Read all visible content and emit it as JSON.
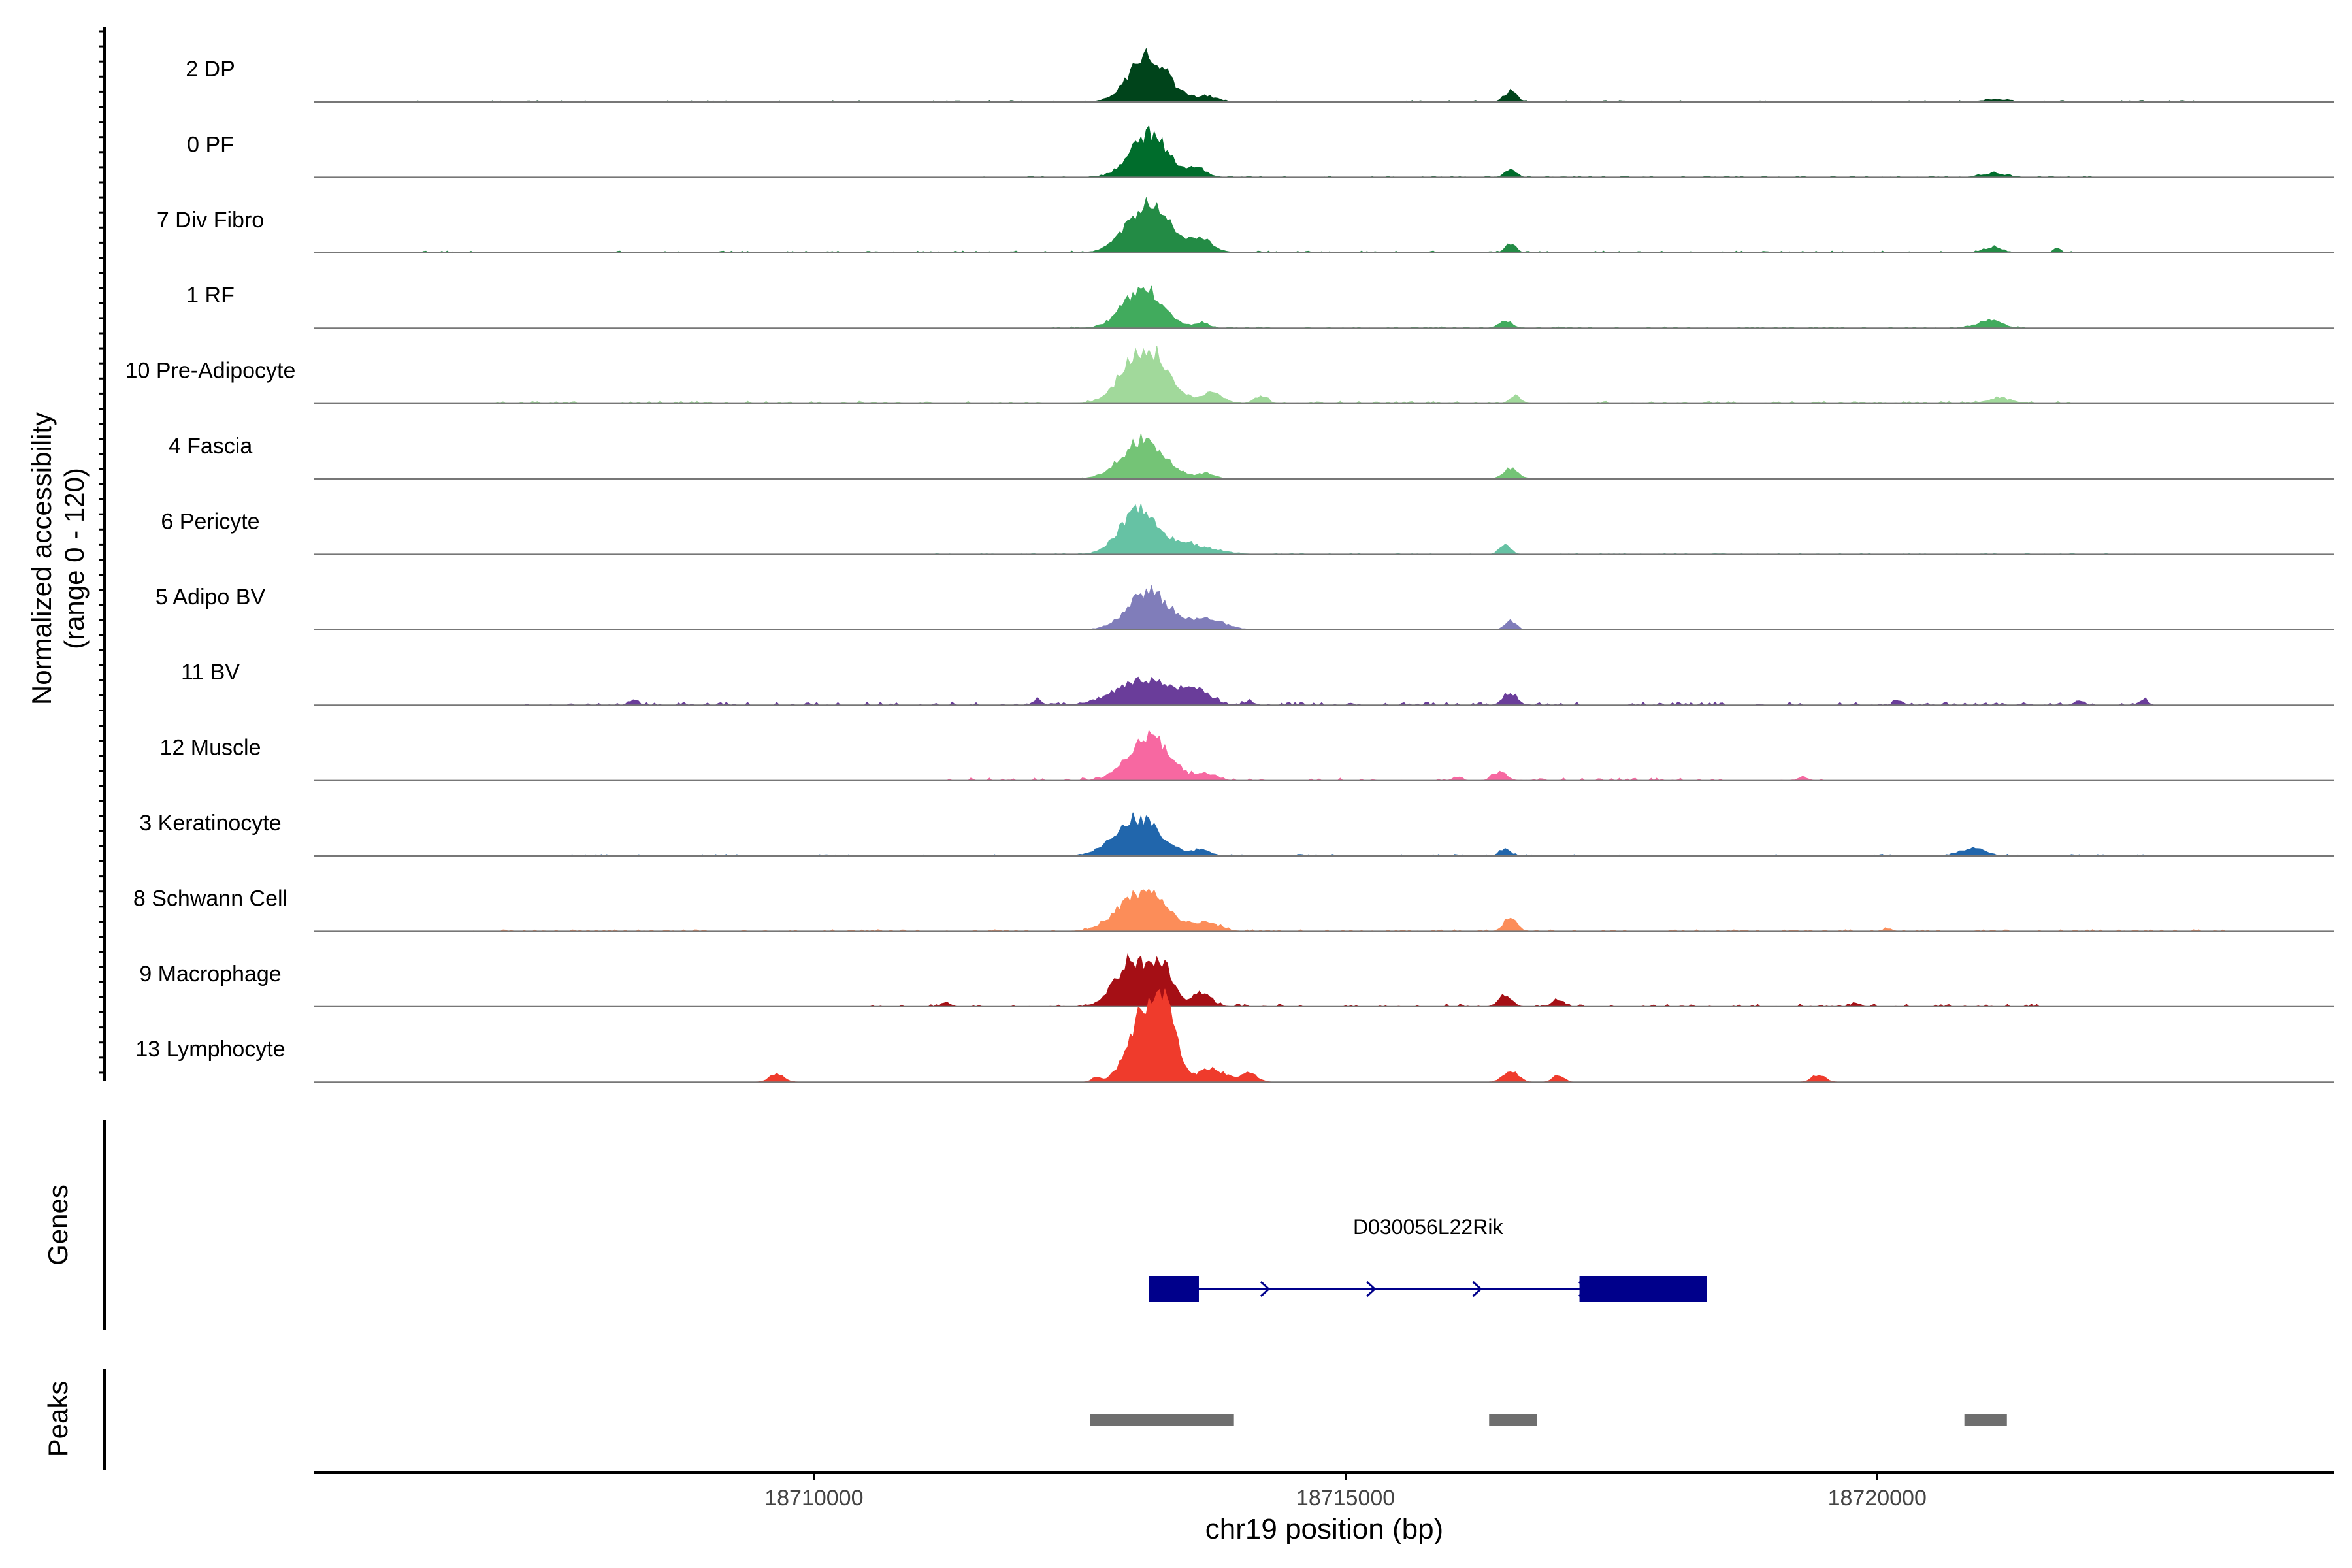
{
  "chart_data": {
    "type": "area",
    "xlabel": "chr19 position (bp)",
    "ylabel_line1": "Normalized accessibility",
    "ylabel_line2": "(range 0 - 120)",
    "xlim": [
      18705300,
      18724300
    ],
    "ylim": [
      0,
      120
    ],
    "xticks": [
      18710000,
      18715000,
      18720000
    ],
    "xtick_labels": [
      "18710000",
      "18715000",
      "18720000"
    ],
    "genes_label": "Genes",
    "peaks_label": "Peaks",
    "gene": {
      "name": "D030056L22Rik",
      "strand": "+",
      "start": 18713150,
      "end": 18718400,
      "exons": [
        [
          18713150,
          18713620
        ],
        [
          18717200,
          18718400
        ]
      ],
      "color": "#00008B"
    },
    "peaks": [
      [
        18712600,
        18713950
      ],
      [
        18716350,
        18716800
      ],
      [
        18720820,
        18721220
      ]
    ],
    "peak_color": "#6e6e6e",
    "series": [
      {
        "name": "2 DP",
        "color": "#00441B",
        "bumps": [
          [
            18713150,
            180,
            36
          ],
          [
            18713700,
            100,
            4
          ],
          [
            18716550,
            60,
            8
          ],
          [
            18721100,
            110,
            2
          ]
        ],
        "noise": [
          [
            18706200,
            18723400,
            1.2
          ]
        ]
      },
      {
        "name": "0 PF",
        "color": "#006D2C",
        "bumps": [
          [
            18713150,
            170,
            34
          ],
          [
            18713600,
            90,
            7
          ],
          [
            18716550,
            50,
            7
          ],
          [
            18721100,
            110,
            3
          ]
        ],
        "noise": [
          [
            18711600,
            18722000,
            1.0
          ]
        ]
      },
      {
        "name": "7 Div Fibro",
        "color": "#238B45",
        "bumps": [
          [
            18713150,
            200,
            37
          ],
          [
            18713650,
            110,
            10
          ],
          [
            18716550,
            50,
            6
          ],
          [
            18721100,
            80,
            4
          ],
          [
            18721700,
            30,
            3
          ]
        ],
        "noise": [
          [
            18706300,
            18722000,
            1.4
          ]
        ]
      },
      {
        "name": "1 RF",
        "color": "#41AB5D",
        "bumps": [
          [
            18713100,
            180,
            32
          ],
          [
            18713650,
            60,
            4
          ],
          [
            18716500,
            60,
            6
          ],
          [
            18721050,
            110,
            6
          ]
        ],
        "noise": [
          [
            18712200,
            18721500,
            1.0
          ]
        ]
      },
      {
        "name": "10 Pre-Adipocyte",
        "color": "#A1D99B",
        "bumps": [
          [
            18713120,
            200,
            44
          ],
          [
            18713750,
            100,
            8
          ],
          [
            18714200,
            60,
            6
          ],
          [
            18716600,
            50,
            6
          ],
          [
            18721150,
            120,
            4
          ]
        ],
        "noise": [
          [
            18707000,
            18721800,
            1.8
          ]
        ]
      },
      {
        "name": "4 Fascia",
        "color": "#74C476",
        "bumps": [
          [
            18713100,
            200,
            30
          ],
          [
            18713700,
            80,
            4
          ],
          [
            18716550,
            70,
            8
          ]
        ],
        "noise": [
          [
            18712500,
            18722000,
            0.6
          ]
        ]
      },
      {
        "name": "6 Pericyte",
        "color": "#66C2A4",
        "bumps": [
          [
            18713050,
            170,
            34
          ],
          [
            18713500,
            230,
            8
          ],
          [
            18716500,
            50,
            8
          ]
        ],
        "noise": [
          [
            18711000,
            18722500,
            0.6
          ]
        ]
      },
      {
        "name": "5 Adipo BV",
        "color": "#807DBA",
        "bumps": [
          [
            18713150,
            190,
            30
          ],
          [
            18713700,
            160,
            8
          ],
          [
            18716550,
            50,
            7
          ]
        ],
        "noise": [
          [
            18712500,
            18721000,
            0.5
          ]
        ]
      },
      {
        "name": "11 BV",
        "color": "#6A3D9A",
        "bumps": [
          [
            18713100,
            260,
            20
          ],
          [
            18713600,
            130,
            10
          ],
          [
            18716550,
            60,
            10
          ],
          [
            18712100,
            40,
            4
          ],
          [
            18714100,
            40,
            3
          ],
          [
            18708300,
            40,
            4
          ],
          [
            18720200,
            40,
            4
          ],
          [
            18721900,
            40,
            4
          ],
          [
            18722500,
            40,
            4
          ]
        ],
        "noise": [
          [
            18707300,
            18722600,
            2.5
          ]
        ]
      },
      {
        "name": "12 Muscle",
        "color": "#F768A1",
        "bumps": [
          [
            18713150,
            190,
            36
          ],
          [
            18713700,
            90,
            5
          ],
          [
            18716450,
            60,
            7
          ],
          [
            18716050,
            40,
            3
          ],
          [
            18719300,
            40,
            3
          ]
        ],
        "noise": [
          [
            18711100,
            18719500,
            2.0
          ]
        ]
      },
      {
        "name": "3 Keratinocyte",
        "color": "#2166AC",
        "bumps": [
          [
            18713050,
            210,
            30
          ],
          [
            18713650,
            80,
            4
          ],
          [
            18716500,
            50,
            5
          ],
          [
            18720900,
            110,
            6
          ]
        ],
        "noise": [
          [
            18707500,
            18722800,
            1.2
          ]
        ]
      },
      {
        "name": "8 Schwann Cell",
        "color": "#FC8D59",
        "bumps": [
          [
            18713100,
            220,
            32
          ],
          [
            18713700,
            120,
            6
          ],
          [
            18716550,
            60,
            10
          ],
          [
            18720100,
            40,
            2
          ]
        ],
        "noise": [
          [
            18706700,
            18723300,
            1.3
          ]
        ]
      },
      {
        "name": "9 Macrophage",
        "color": "#A50F15",
        "bumps": [
          [
            18713000,
            160,
            36
          ],
          [
            18713280,
            100,
            28
          ],
          [
            18713650,
            90,
            10
          ],
          [
            18716500,
            60,
            9
          ],
          [
            18717000,
            50,
            6
          ],
          [
            18711250,
            40,
            3
          ],
          [
            18719800,
            40,
            3
          ]
        ],
        "noise": [
          [
            18710500,
            18721500,
            2.2
          ]
        ]
      },
      {
        "name": "13 Lymphocyte",
        "color": "#EF3B2C",
        "bumps": [
          [
            18713100,
            150,
            50
          ],
          [
            18713300,
            110,
            45
          ],
          [
            18713750,
            140,
            10
          ],
          [
            18714100,
            70,
            7
          ],
          [
            18716550,
            70,
            9
          ],
          [
            18717000,
            50,
            6
          ],
          [
            18709650,
            70,
            6
          ],
          [
            18719450,
            60,
            6
          ],
          [
            18712650,
            40,
            3
          ]
        ],
        "noise": [
          [
            18709300,
            18719800,
            0.0
          ]
        ]
      }
    ]
  }
}
